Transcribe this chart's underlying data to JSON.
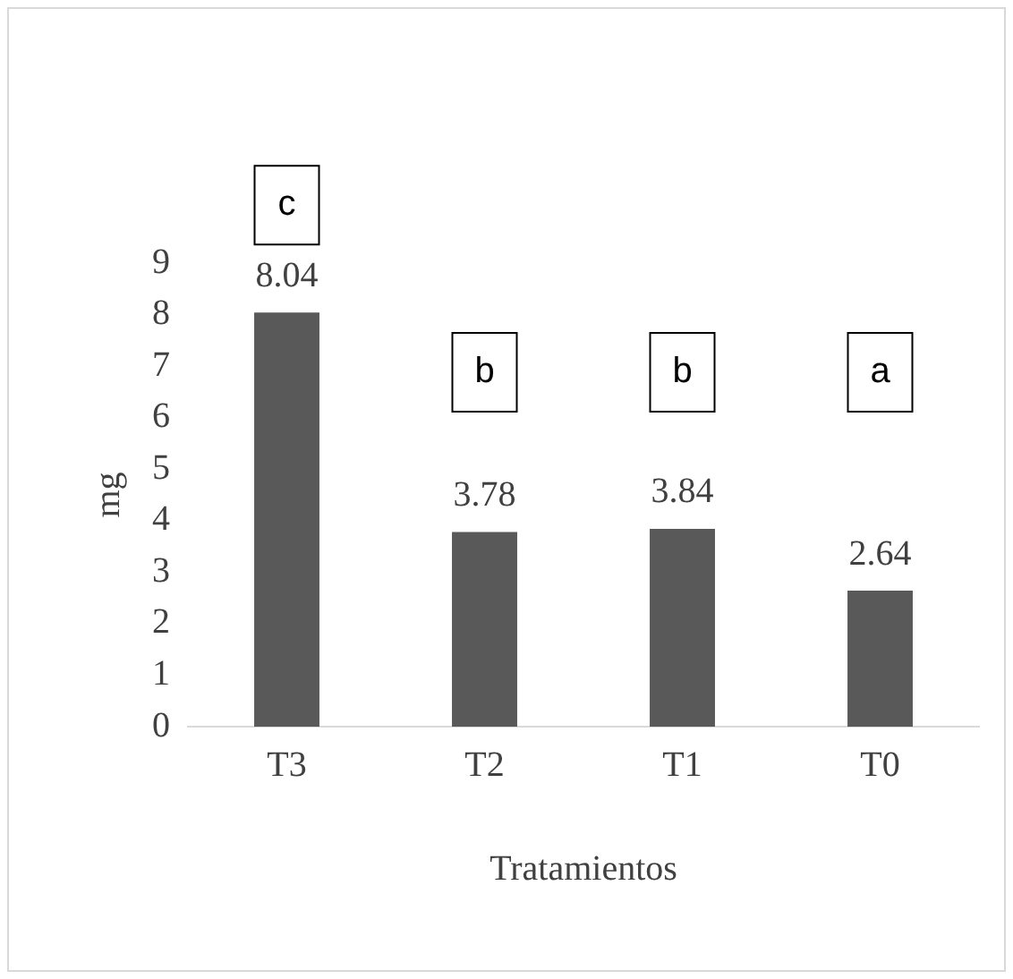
{
  "chart_data": {
    "type": "bar",
    "xlabel": "Tratamientos",
    "ylabel": "mg",
    "categories": [
      "T3",
      "T2",
      "T1",
      "T0"
    ],
    "values": [
      8.04,
      3.78,
      3.84,
      2.64
    ],
    "color": "#595959",
    "ylim": [
      0,
      9
    ],
    "yticks": [
      0,
      1,
      2,
      3,
      4,
      5,
      6,
      7,
      8,
      9
    ],
    "grid": false,
    "data_labels": true,
    "legend": false,
    "annotations": [
      "c",
      "b",
      "b",
      "a"
    ]
  }
}
